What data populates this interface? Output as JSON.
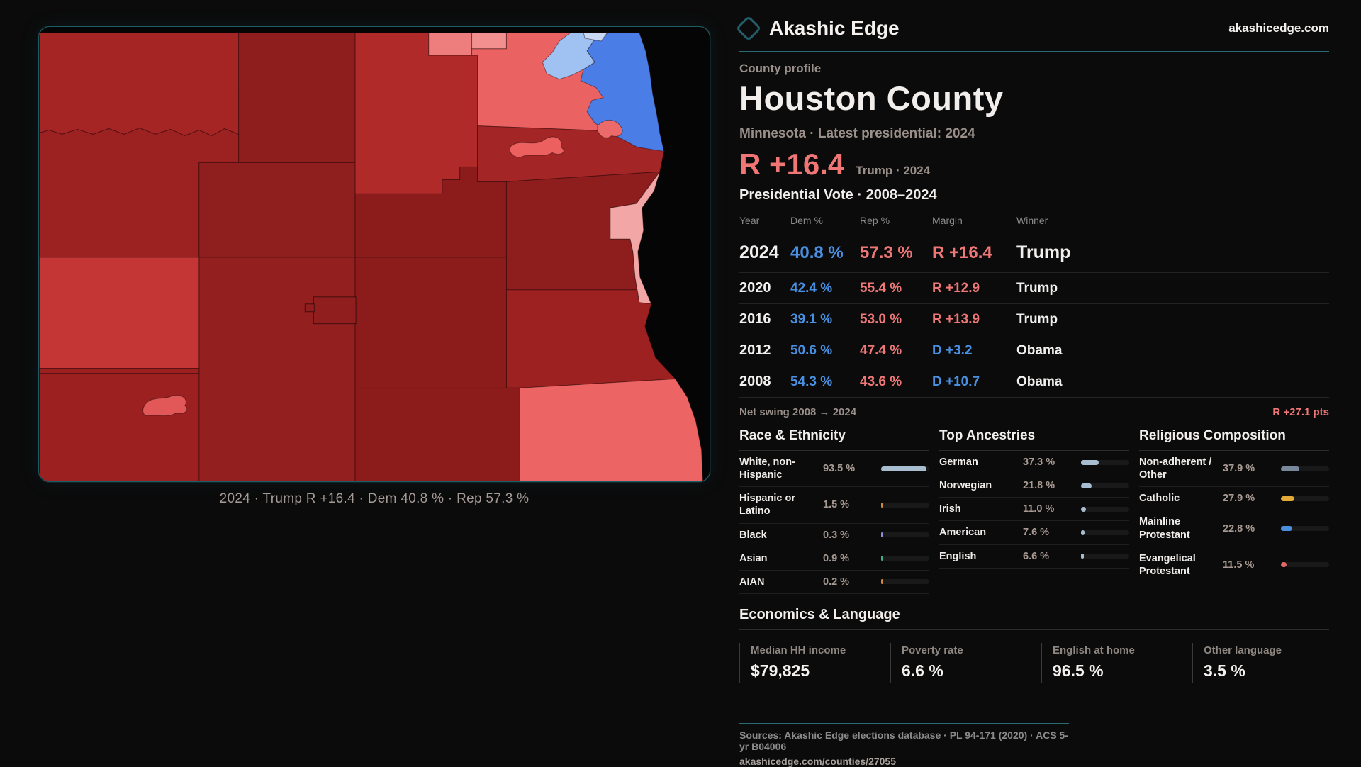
{
  "brand": {
    "name": "Akashic Edge",
    "domain": "akashicedge.com"
  },
  "page": {
    "kicker": "County profile",
    "title": "Houston County",
    "subtitle": "Minnesota · Latest presidential: 2024"
  },
  "headline": {
    "value": "R +16.4",
    "context": "Trump · 2024",
    "color": "#f07575"
  },
  "history": {
    "title": "Presidential Vote · 2008–2024",
    "columns": [
      "Year",
      "Dem %",
      "Rep %",
      "Margin",
      "Winner"
    ],
    "rows": [
      {
        "year": "2024",
        "dem": "40.8 %",
        "rep": "57.3 %",
        "margin": "R +16.4",
        "margin_party": "R",
        "winner": "Trump",
        "emphasis": true
      },
      {
        "year": "2020",
        "dem": "42.4 %",
        "rep": "55.4 %",
        "margin": "R +12.9",
        "margin_party": "R",
        "winner": "Trump",
        "emphasis": false
      },
      {
        "year": "2016",
        "dem": "39.1 %",
        "rep": "53.0 %",
        "margin": "R +13.9",
        "margin_party": "R",
        "winner": "Trump",
        "emphasis": false
      },
      {
        "year": "2012",
        "dem": "50.6 %",
        "rep": "47.4 %",
        "margin": "D +3.2",
        "margin_party": "D",
        "winner": "Obama",
        "emphasis": false
      },
      {
        "year": "2008",
        "dem": "54.3 %",
        "rep": "43.6 %",
        "margin": "D +10.7",
        "margin_party": "D",
        "winner": "Obama",
        "emphasis": false
      }
    ],
    "net_swing_label": "Net swing 2008 → 2024",
    "net_swing_value": "R +27.1 pts"
  },
  "demographics": [
    {
      "title": "Race & Ethnicity",
      "rows": [
        {
          "label": "White, non-Hispanic",
          "value": "93.5 %",
          "pct": 93.5,
          "bar_color": "#a9bdd1"
        },
        {
          "label": "Hispanic or Latino",
          "value": "1.5 %",
          "pct": 1.5,
          "bar_color": "#d08a3e"
        },
        {
          "label": "Black",
          "value": "0.3 %",
          "pct": 0.3,
          "bar_color": "#8f8fd9"
        },
        {
          "label": "Asian",
          "value": "0.9 %",
          "pct": 0.9,
          "bar_color": "#3fae8c"
        },
        {
          "label": "AIAN",
          "value": "0.2 %",
          "pct": 0.2,
          "bar_color": "#d08a3e"
        }
      ]
    },
    {
      "title": "Top Ancestries",
      "rows": [
        {
          "label": "German",
          "value": "37.3 %",
          "pct": 37.3,
          "bar_color": "#a9bdd1"
        },
        {
          "label": "Norwegian",
          "value": "21.8 %",
          "pct": 21.8,
          "bar_color": "#a9bdd1"
        },
        {
          "label": "Irish",
          "value": "11.0 %",
          "pct": 11.0,
          "bar_color": "#a9bdd1"
        },
        {
          "label": "American",
          "value": "7.6 %",
          "pct": 7.6,
          "bar_color": "#a9bdd1"
        },
        {
          "label": "English",
          "value": "6.6 %",
          "pct": 6.6,
          "bar_color": "#a9bdd1"
        }
      ]
    },
    {
      "title": "Religious Composition",
      "rows": [
        {
          "label": "Non-adherent / Other",
          "value": "37.9 %",
          "pct": 37.9,
          "bar_color": "#77879c"
        },
        {
          "label": "Catholic",
          "value": "27.9 %",
          "pct": 27.9,
          "bar_color": "#e3aa38"
        },
        {
          "label": "Mainline Protestant",
          "value": "22.8 %",
          "pct": 22.8,
          "bar_color": "#4a8fdd"
        },
        {
          "label": "Evangelical Protestant",
          "value": "11.5 %",
          "pct": 11.5,
          "bar_color": "#e06868"
        }
      ]
    }
  ],
  "economics": {
    "title": "Economics & Language",
    "stats": [
      {
        "label": "Median HH income",
        "value": "$79,825"
      },
      {
        "label": "Poverty rate",
        "value": "6.6 %"
      },
      {
        "label": "English at home",
        "value": "96.5 %"
      },
      {
        "label": "Other language",
        "value": "3.5 %"
      }
    ]
  },
  "map": {
    "caption": "2024 · Trump R +16.4 · Dem 40.8 % · Rep 57.3 %",
    "party_colors": {
      "dem": "#4a90e2",
      "rep": "#f07575"
    },
    "accent_teal": "#1d5c66"
  },
  "footer": {
    "sources": "Sources: Akashic Edge elections database · PL 94-171 (2020) · ACS 5-yr B04006",
    "permalink": "akashicedge.com/counties/27055"
  }
}
